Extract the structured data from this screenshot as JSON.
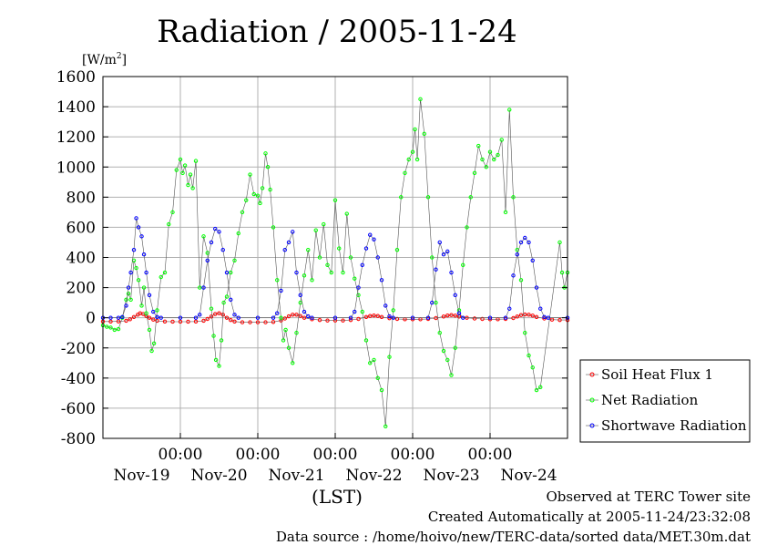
{
  "chart_data": {
    "type": "line",
    "title": "Radiation / 2005-11-24",
    "ylabel": "[W/m2]",
    "ylabel_base": "[W/m",
    "ylabel_sup": "2",
    "ylabel_close": "]",
    "xlabel": "(LST)",
    "ylim": [
      -800,
      1600
    ],
    "yticks": [
      -800,
      -600,
      -400,
      -200,
      0,
      200,
      400,
      600,
      800,
      1000,
      1200,
      1400,
      1600
    ],
    "x_unit": "days",
    "xlim": [
      0,
      6
    ],
    "x_gridlines": [
      1,
      2,
      3,
      4,
      5
    ],
    "x_tick_time_label": "00:00",
    "x_day_labels": [
      "Nov-19",
      "Nov-20",
      "Nov-21",
      "Nov-22",
      "Nov-23",
      "Nov-24"
    ],
    "x_day_label_positions": [
      0.5,
      1.5,
      2.5,
      3.5,
      4.5,
      5.5
    ],
    "grid": true,
    "legend_position": "bottom-right outside plot",
    "series": [
      {
        "name": "Soil Heat Flux 1",
        "color": "#ff0000",
        "points": [
          [
            0.0,
            -25
          ],
          [
            0.1,
            -25
          ],
          [
            0.2,
            -24
          ],
          [
            0.3,
            -20
          ],
          [
            0.35,
            -10
          ],
          [
            0.4,
            5
          ],
          [
            0.45,
            20
          ],
          [
            0.48,
            30
          ],
          [
            0.52,
            25
          ],
          [
            0.56,
            12
          ],
          [
            0.6,
            0
          ],
          [
            0.65,
            -12
          ],
          [
            0.7,
            -20
          ],
          [
            0.8,
            -25
          ],
          [
            0.9,
            -26
          ],
          [
            1.0,
            -26
          ],
          [
            1.1,
            -26
          ],
          [
            1.2,
            -25
          ],
          [
            1.3,
            -20
          ],
          [
            1.35,
            -8
          ],
          [
            1.4,
            8
          ],
          [
            1.45,
            25
          ],
          [
            1.5,
            30
          ],
          [
            1.55,
            20
          ],
          [
            1.6,
            0
          ],
          [
            1.65,
            -15
          ],
          [
            1.7,
            -25
          ],
          [
            1.8,
            -30
          ],
          [
            1.9,
            -30
          ],
          [
            2.0,
            -30
          ],
          [
            2.1,
            -30
          ],
          [
            2.2,
            -28
          ],
          [
            2.3,
            -18
          ],
          [
            2.35,
            -5
          ],
          [
            2.4,
            10
          ],
          [
            2.45,
            20
          ],
          [
            2.5,
            20
          ],
          [
            2.55,
            12
          ],
          [
            2.6,
            0
          ],
          [
            2.7,
            -10
          ],
          [
            2.8,
            -15
          ],
          [
            2.9,
            -18
          ],
          [
            3.0,
            -18
          ],
          [
            3.1,
            -18
          ],
          [
            3.2,
            -15
          ],
          [
            3.3,
            -8
          ],
          [
            3.4,
            5
          ],
          [
            3.45,
            12
          ],
          [
            3.5,
            15
          ],
          [
            3.55,
            12
          ],
          [
            3.6,
            5
          ],
          [
            3.7,
            -3
          ],
          [
            3.8,
            -8
          ],
          [
            3.9,
            -10
          ],
          [
            4.0,
            -10
          ],
          [
            4.1,
            -10
          ],
          [
            4.2,
            -8
          ],
          [
            4.3,
            -2
          ],
          [
            4.4,
            8
          ],
          [
            4.45,
            15
          ],
          [
            4.5,
            18
          ],
          [
            4.55,
            14
          ],
          [
            4.6,
            8
          ],
          [
            4.7,
            0
          ],
          [
            4.8,
            -5
          ],
          [
            4.9,
            -8
          ],
          [
            5.0,
            -10
          ],
          [
            5.1,
            -10
          ],
          [
            5.2,
            -8
          ],
          [
            5.3,
            -2
          ],
          [
            5.35,
            8
          ],
          [
            5.4,
            18
          ],
          [
            5.45,
            22
          ],
          [
            5.5,
            20
          ],
          [
            5.55,
            14
          ],
          [
            5.6,
            5
          ],
          [
            5.7,
            -5
          ],
          [
            5.8,
            -12
          ],
          [
            5.9,
            -15
          ],
          [
            6.0,
            -15
          ]
        ]
      },
      {
        "name": "Net Radiation",
        "color": "#00ff00",
        "points": [
          [
            0.0,
            -50
          ],
          [
            0.05,
            -60
          ],
          [
            0.1,
            -65
          ],
          [
            0.15,
            -80
          ],
          [
            0.2,
            -75
          ],
          [
            0.25,
            0
          ],
          [
            0.3,
            120
          ],
          [
            0.33,
            160
          ],
          [
            0.36,
            120
          ],
          [
            0.4,
            380
          ],
          [
            0.43,
            330
          ],
          [
            0.46,
            250
          ],
          [
            0.5,
            80
          ],
          [
            0.53,
            200
          ],
          [
            0.56,
            30
          ],
          [
            0.6,
            -80
          ],
          [
            0.63,
            -220
          ],
          [
            0.66,
            -170
          ],
          [
            0.7,
            50
          ],
          [
            0.75,
            270
          ],
          [
            0.8,
            300
          ],
          [
            0.85,
            620
          ],
          [
            0.9,
            700
          ],
          [
            0.95,
            980
          ],
          [
            1.0,
            1050
          ],
          [
            1.03,
            960
          ],
          [
            1.06,
            1010
          ],
          [
            1.1,
            880
          ],
          [
            1.13,
            950
          ],
          [
            1.16,
            860
          ],
          [
            1.2,
            1040
          ],
          [
            1.25,
            200
          ],
          [
            1.3,
            540
          ],
          [
            1.35,
            430
          ],
          [
            1.4,
            60
          ],
          [
            1.43,
            -120
          ],
          [
            1.46,
            -280
          ],
          [
            1.5,
            -320
          ],
          [
            1.53,
            -150
          ],
          [
            1.56,
            100
          ],
          [
            1.6,
            140
          ],
          [
            1.65,
            300
          ],
          [
            1.7,
            380
          ],
          [
            1.75,
            560
          ],
          [
            1.8,
            700
          ],
          [
            1.85,
            780
          ],
          [
            1.9,
            950
          ],
          [
            1.95,
            820
          ],
          [
            2.0,
            810
          ],
          [
            2.03,
            760
          ],
          [
            2.06,
            860
          ],
          [
            2.1,
            1090
          ],
          [
            2.13,
            1000
          ],
          [
            2.16,
            850
          ],
          [
            2.2,
            600
          ],
          [
            2.25,
            250
          ],
          [
            2.3,
            0
          ],
          [
            2.33,
            -150
          ],
          [
            2.36,
            -80
          ],
          [
            2.4,
            -200
          ],
          [
            2.45,
            -300
          ],
          [
            2.5,
            -100
          ],
          [
            2.55,
            100
          ],
          [
            2.6,
            280
          ],
          [
            2.65,
            450
          ],
          [
            2.7,
            250
          ],
          [
            2.75,
            580
          ],
          [
            2.8,
            400
          ],
          [
            2.85,
            620
          ],
          [
            2.9,
            350
          ],
          [
            2.95,
            300
          ],
          [
            3.0,
            780
          ],
          [
            3.05,
            460
          ],
          [
            3.1,
            300
          ],
          [
            3.15,
            690
          ],
          [
            3.2,
            400
          ],
          [
            3.25,
            260
          ],
          [
            3.3,
            150
          ],
          [
            3.35,
            40
          ],
          [
            3.4,
            -150
          ],
          [
            3.45,
            -300
          ],
          [
            3.5,
            -280
          ],
          [
            3.55,
            -400
          ],
          [
            3.6,
            -480
          ],
          [
            3.65,
            -720
          ],
          [
            3.7,
            -260
          ],
          [
            3.75,
            50
          ],
          [
            3.8,
            450
          ],
          [
            3.85,
            800
          ],
          [
            3.9,
            960
          ],
          [
            3.95,
            1050
          ],
          [
            4.0,
            1100
          ],
          [
            4.03,
            1250
          ],
          [
            4.06,
            1050
          ],
          [
            4.1,
            1450
          ],
          [
            4.15,
            1220
          ],
          [
            4.2,
            800
          ],
          [
            4.25,
            400
          ],
          [
            4.3,
            100
          ],
          [
            4.35,
            -100
          ],
          [
            4.4,
            -220
          ],
          [
            4.45,
            -280
          ],
          [
            4.5,
            -380
          ],
          [
            4.55,
            -200
          ],
          [
            4.6,
            50
          ],
          [
            4.65,
            350
          ],
          [
            4.7,
            600
          ],
          [
            4.75,
            800
          ],
          [
            4.8,
            960
          ],
          [
            4.85,
            1140
          ],
          [
            4.9,
            1050
          ],
          [
            4.95,
            1000
          ],
          [
            5.0,
            1100
          ],
          [
            5.05,
            1050
          ],
          [
            5.1,
            1080
          ],
          [
            5.15,
            1180
          ],
          [
            5.2,
            700
          ],
          [
            5.25,
            1380
          ],
          [
            5.3,
            800
          ],
          [
            5.35,
            450
          ],
          [
            5.4,
            250
          ],
          [
            5.45,
            -100
          ],
          [
            5.5,
            -250
          ],
          [
            5.55,
            -330
          ],
          [
            5.6,
            -480
          ],
          [
            5.65,
            -460
          ],
          [
            5.9,
            500
          ],
          [
            5.93,
            300
          ],
          [
            5.96,
            200
          ],
          [
            6.0,
            300
          ]
        ]
      },
      {
        "name": "Shortwave Radiation",
        "color": "#0000ff",
        "points": [
          [
            0.0,
            0
          ],
          [
            0.1,
            0
          ],
          [
            0.2,
            0
          ],
          [
            0.25,
            5
          ],
          [
            0.3,
            80
          ],
          [
            0.33,
            200
          ],
          [
            0.36,
            300
          ],
          [
            0.4,
            450
          ],
          [
            0.43,
            660
          ],
          [
            0.46,
            600
          ],
          [
            0.5,
            540
          ],
          [
            0.53,
            420
          ],
          [
            0.56,
            300
          ],
          [
            0.6,
            150
          ],
          [
            0.65,
            40
          ],
          [
            0.7,
            5
          ],
          [
            0.75,
            0
          ],
          [
            1.0,
            0
          ],
          [
            1.2,
            0
          ],
          [
            1.25,
            20
          ],
          [
            1.3,
            200
          ],
          [
            1.35,
            380
          ],
          [
            1.4,
            500
          ],
          [
            1.45,
            590
          ],
          [
            1.5,
            570
          ],
          [
            1.55,
            450
          ],
          [
            1.6,
            300
          ],
          [
            1.65,
            120
          ],
          [
            1.7,
            20
          ],
          [
            1.75,
            0
          ],
          [
            2.0,
            0
          ],
          [
            2.2,
            0
          ],
          [
            2.25,
            30
          ],
          [
            2.3,
            180
          ],
          [
            2.35,
            450
          ],
          [
            2.4,
            500
          ],
          [
            2.45,
            570
          ],
          [
            2.5,
            300
          ],
          [
            2.55,
            150
          ],
          [
            2.6,
            40
          ],
          [
            2.65,
            10
          ],
          [
            2.7,
            0
          ],
          [
            3.0,
            0
          ],
          [
            3.2,
            0
          ],
          [
            3.25,
            40
          ],
          [
            3.3,
            200
          ],
          [
            3.35,
            350
          ],
          [
            3.4,
            460
          ],
          [
            3.45,
            550
          ],
          [
            3.5,
            520
          ],
          [
            3.55,
            400
          ],
          [
            3.6,
            250
          ],
          [
            3.65,
            80
          ],
          [
            3.7,
            10
          ],
          [
            3.75,
            0
          ],
          [
            4.0,
            0
          ],
          [
            4.2,
            0
          ],
          [
            4.25,
            100
          ],
          [
            4.3,
            320
          ],
          [
            4.35,
            500
          ],
          [
            4.4,
            420
          ],
          [
            4.45,
            440
          ],
          [
            4.5,
            300
          ],
          [
            4.55,
            150
          ],
          [
            4.6,
            30
          ],
          [
            4.65,
            0
          ],
          [
            5.0,
            0
          ],
          [
            5.2,
            0
          ],
          [
            5.25,
            60
          ],
          [
            5.3,
            280
          ],
          [
            5.35,
            420
          ],
          [
            5.4,
            500
          ],
          [
            5.45,
            530
          ],
          [
            5.5,
            500
          ],
          [
            5.55,
            380
          ],
          [
            5.6,
            200
          ],
          [
            5.65,
            60
          ],
          [
            5.7,
            5
          ],
          [
            5.75,
            0
          ],
          [
            6.0,
            0
          ]
        ]
      }
    ]
  },
  "footer": {
    "observed": "Observed at TERC Tower site",
    "created": "Created Automatically at 2005-11-24/23:32:08",
    "source": "Data source : /home/hoivo/new/TERC-data/sorted  data/MET.30m.dat"
  }
}
